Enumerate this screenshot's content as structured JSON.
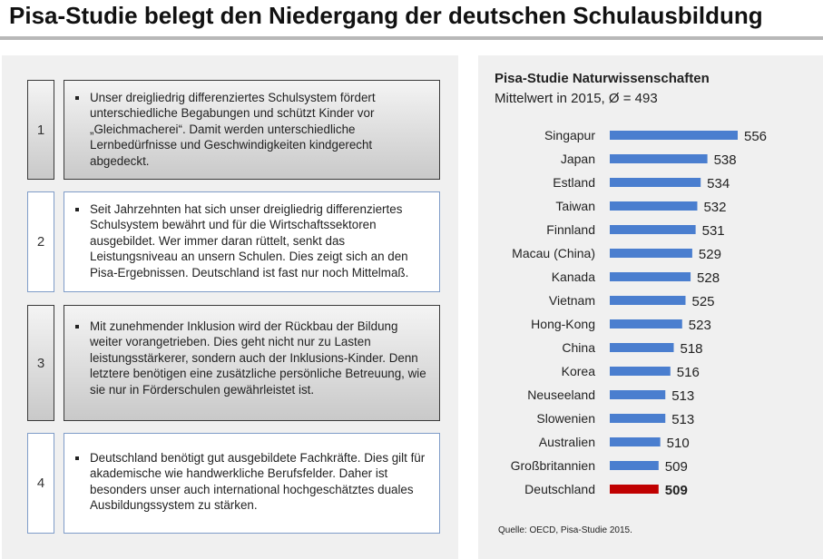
{
  "page": {
    "title": "Pisa-Studie belegt den Niedergang der deutschen Schulausbildung"
  },
  "points": [
    {
      "number": "1",
      "style": "gray",
      "text": "Unser dreigliedrig differenziertes Schulsystem fördert unterschiedliche Begabungen und schützt Kinder vor „Gleichmacherei“. Damit werden unterschiedliche Lernbedürfnisse und Geschwindigkeiten kindgerecht abgedeckt."
    },
    {
      "number": "2",
      "style": "blue",
      "text": "Seit Jahrzehnten hat sich unser dreigliedrig differenziertes Schulsystem bewährt und für die Wirtschaftssektoren ausgebildet. Wer immer daran rüttelt, senkt das Leistungsniveau an unsern Schulen. Dies zeigt sich an den Pisa-Ergebnissen. Deutschland ist fast nur noch Mittelmaß."
    },
    {
      "number": "3",
      "style": "gray",
      "text": "Mit zunehmender Inklusion wird der Rückbau der Bildung weiter vorangetrieben. Dies geht nicht nur zu Lasten leistungsstärkerer, sondern auch der Inklusions-Kinder. Denn letztere benötigen eine zusätzliche persönliche Betreuung, wie sie nur in Förderschulen gewährleistet ist."
    },
    {
      "number": "4",
      "style": "blue",
      "text": "Deutschland benötigt gut ausgebildete Fachkräfte. Dies gilt für akademische wie handwerkliche Berufsfelder. Daher ist besonders unser auch international hochgeschätztes duales Ausbildungssystem zu stärken."
    }
  ],
  "chart_data": {
    "type": "bar",
    "orientation": "horizontal",
    "title": "Pisa-Studie Naturwissenschaften",
    "subtitle": "Mittelwert in 2015, Ø = 493",
    "categories": [
      "Singapur",
      "Japan",
      "Estland",
      "Taiwan",
      "Finnland",
      "Macau (China)",
      "Kanada",
      "Vietnam",
      "Hong-Kong",
      "China",
      "Korea",
      "Neuseeland",
      "Slowenien",
      "Australien",
      "Großbritannien",
      "Deutschland"
    ],
    "values": [
      556,
      538,
      534,
      532,
      531,
      529,
      528,
      525,
      523,
      518,
      516,
      513,
      513,
      510,
      509,
      509
    ],
    "value_labels": [
      "556",
      "538",
      "534",
      "532",
      "531",
      "529",
      "528",
      "525",
      "523",
      "518",
      "516",
      "513",
      "513",
      "510",
      "509",
      "509"
    ],
    "xlim": [
      480,
      556
    ],
    "highlight": "Deutschland",
    "colors": {
      "bar": "#4a7ecf",
      "highlight": "#c00000"
    },
    "source": "Quelle: OECD, Pisa-Studie 2015.",
    "xlabel": "",
    "ylabel": "",
    "grid": false,
    "legend": "none"
  }
}
